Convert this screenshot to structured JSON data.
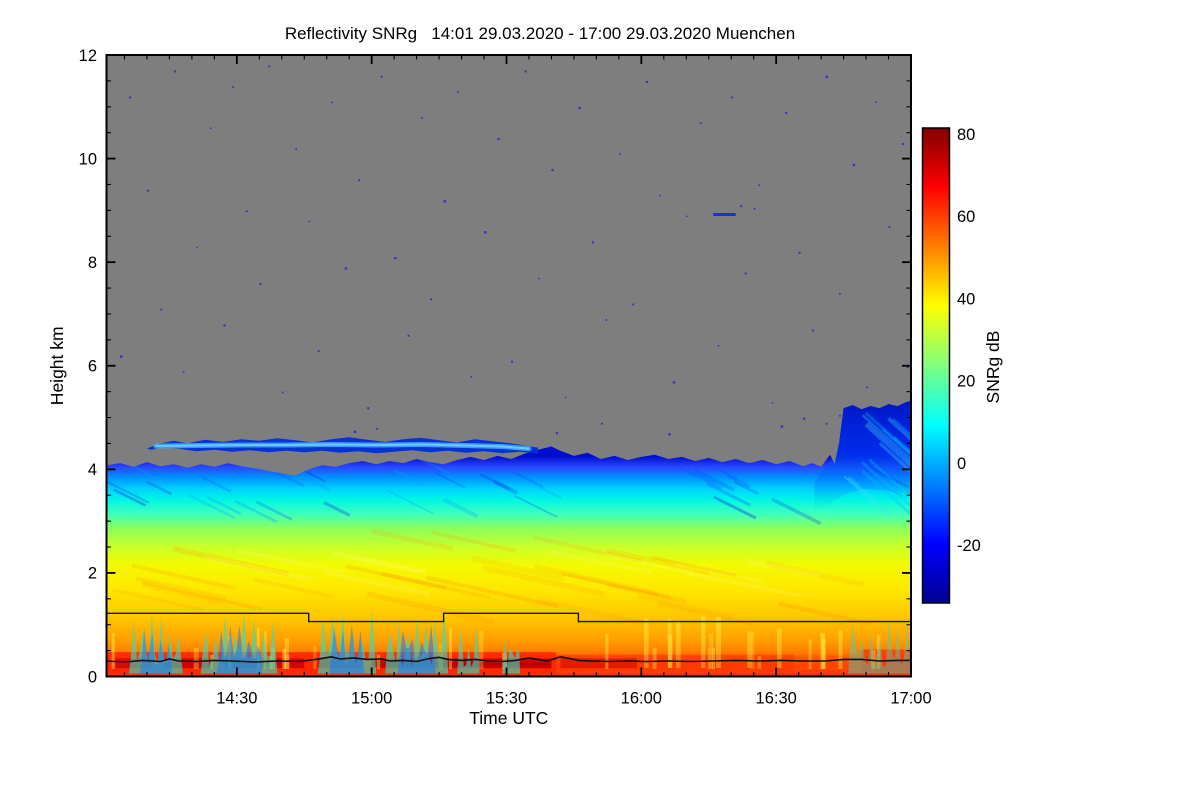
{
  "title": "Reflectivity SNRg   14:01 29.03.2020 - 17:00 29.03.2020 Muenchen",
  "axes": {
    "x_label": "Time UTC",
    "y_label": "Height km"
  },
  "colorbar": {
    "label": "SNRg dB"
  },
  "chart_data": {
    "type": "heatmap",
    "title": "Reflectivity SNRg   14:01 29.03.2020 - 17:00 29.03.2020 Muenchen",
    "site": "Muenchen",
    "time_start": "14:01 29.03.2020",
    "time_end": "17:00 29.03.2020",
    "x_axis": {
      "label": "Time UTC",
      "start_min": 0,
      "end_min": 179,
      "major_ticks": [
        {
          "t": 29,
          "label": "14:30"
        },
        {
          "t": 59,
          "label": "15:00"
        },
        {
          "t": 89,
          "label": "15:30"
        },
        {
          "t": 119,
          "label": "16:00"
        },
        {
          "t": 149,
          "label": "16:30"
        },
        {
          "t": 179,
          "label": "17:00"
        }
      ],
      "minor_step_min": 5
    },
    "y_axis": {
      "label": "Height km",
      "range_km": [
        0,
        12
      ],
      "major_ticks": [
        {
          "v": 0,
          "label": "0"
        },
        {
          "v": 2,
          "label": "2"
        },
        {
          "v": 4,
          "label": "4"
        },
        {
          "v": 6,
          "label": "6"
        },
        {
          "v": 8,
          "label": "8"
        },
        {
          "v": 10,
          "label": "10"
        },
        {
          "v": 12,
          "label": "12"
        }
      ],
      "minor_step_km": 0.5
    },
    "colorbar": {
      "label": "SNRg dB",
      "range_db": [
        -34,
        81.5
      ],
      "major_ticks": [
        {
          "v": -20,
          "label": "-20"
        },
        {
          "v": 0,
          "label": "0"
        },
        {
          "v": 20,
          "label": "20"
        },
        {
          "v": 40,
          "label": "40"
        },
        {
          "v": 60,
          "label": "60"
        },
        {
          "v": 80,
          "label": "80"
        }
      ],
      "minor_ticks": [
        -30,
        -10,
        10,
        30,
        50,
        70
      ],
      "colormap": "jet"
    },
    "no_data_color": "#7e7e7e",
    "snr_db_by_height_km_profile": [
      [
        0.1,
        62
      ],
      [
        0.3,
        60
      ],
      [
        0.7,
        50
      ],
      [
        1.2,
        47
      ],
      [
        2.0,
        42
      ],
      [
        2.6,
        35
      ],
      [
        3.0,
        27
      ],
      [
        3.3,
        20
      ],
      [
        3.6,
        12
      ],
      [
        3.8,
        4
      ],
      [
        4.0,
        -5
      ],
      [
        4.15,
        -20
      ]
    ],
    "cloud_top_km": [
      [
        0,
        4.08
      ],
      [
        3,
        4.12
      ],
      [
        6,
        4.05
      ],
      [
        9,
        4.14
      ],
      [
        12,
        4.06
      ],
      [
        15,
        4.1
      ],
      [
        18,
        4.03
      ],
      [
        21,
        4.1
      ],
      [
        24,
        4.05
      ],
      [
        27,
        4.12
      ],
      [
        30,
        4.06
      ],
      [
        33,
        4.02
      ],
      [
        36,
        3.97
      ],
      [
        39,
        3.92
      ],
      [
        42,
        3.88
      ],
      [
        44,
        3.96
      ],
      [
        46,
        4.03
      ],
      [
        48,
        4.08
      ],
      [
        51,
        4.05
      ],
      [
        54,
        4.12
      ],
      [
        57,
        4.16
      ],
      [
        60,
        4.1
      ],
      [
        63,
        4.16
      ],
      [
        66,
        4.12
      ],
      [
        69,
        4.2
      ],
      [
        72,
        4.14
      ],
      [
        75,
        4.1
      ],
      [
        78,
        4.18
      ],
      [
        81,
        4.24
      ],
      [
        84,
        4.18
      ],
      [
        87,
        4.26
      ],
      [
        90,
        4.2
      ],
      [
        93,
        4.3
      ],
      [
        96,
        4.38
      ],
      [
        99,
        4.44
      ],
      [
        101,
        4.36
      ],
      [
        104,
        4.26
      ],
      [
        107,
        4.32
      ],
      [
        110,
        4.2
      ],
      [
        113,
        4.26
      ],
      [
        116,
        4.18
      ],
      [
        119,
        4.24
      ],
      [
        122,
        4.28
      ],
      [
        125,
        4.2
      ],
      [
        128,
        4.24
      ],
      [
        131,
        4.16
      ],
      [
        134,
        4.22
      ],
      [
        137,
        4.14
      ],
      [
        140,
        4.2
      ],
      [
        143,
        4.12
      ],
      [
        146,
        4.18
      ],
      [
        149,
        4.1
      ],
      [
        152,
        4.16
      ],
      [
        155,
        4.06
      ],
      [
        157,
        4.12
      ],
      [
        159,
        4.05
      ],
      [
        161,
        4.28
      ],
      [
        162,
        4.1
      ],
      [
        163,
        4.5
      ],
      [
        164,
        5.18
      ],
      [
        166,
        5.24
      ],
      [
        168,
        5.16
      ],
      [
        170,
        5.22
      ],
      [
        172,
        5.18
      ],
      [
        174,
        5.26
      ],
      [
        176,
        5.22
      ],
      [
        178,
        5.3
      ],
      [
        179,
        5.32
      ]
    ],
    "detached_layer_km": [
      [
        9,
        4.4
      ],
      [
        12,
        4.5
      ],
      [
        15,
        4.55
      ],
      [
        18,
        4.5
      ],
      [
        22,
        4.57
      ],
      [
        26,
        4.53
      ],
      [
        30,
        4.58
      ],
      [
        34,
        4.55
      ],
      [
        38,
        4.6
      ],
      [
        42,
        4.56
      ],
      [
        46,
        4.52
      ],
      [
        50,
        4.58
      ],
      [
        54,
        4.62
      ],
      [
        58,
        4.57
      ],
      [
        62,
        4.53
      ],
      [
        66,
        4.58
      ],
      [
        70,
        4.61
      ],
      [
        74,
        4.56
      ],
      [
        78,
        4.52
      ],
      [
        82,
        4.58
      ],
      [
        86,
        4.54
      ],
      [
        90,
        4.5
      ],
      [
        93,
        4.46
      ],
      [
        96,
        4.42
      ],
      [
        96,
        4.3
      ],
      [
        92,
        4.34
      ],
      [
        88,
        4.31
      ],
      [
        84,
        4.35
      ],
      [
        80,
        4.32
      ],
      [
        76,
        4.36
      ],
      [
        72,
        4.33
      ],
      [
        68,
        4.37
      ],
      [
        64,
        4.34
      ],
      [
        60,
        4.31
      ],
      [
        56,
        4.35
      ],
      [
        52,
        4.32
      ],
      [
        48,
        4.36
      ],
      [
        44,
        4.33
      ],
      [
        40,
        4.36
      ],
      [
        36,
        4.33
      ],
      [
        32,
        4.37
      ],
      [
        28,
        4.34
      ],
      [
        24,
        4.38
      ],
      [
        20,
        4.35
      ],
      [
        16,
        4.4
      ],
      [
        12,
        4.42
      ],
      [
        10,
        4.38
      ]
    ],
    "detached_layer_core_km": [
      [
        11,
        4.45
      ],
      [
        20,
        4.46
      ],
      [
        30,
        4.47
      ],
      [
        40,
        4.47
      ],
      [
        50,
        4.48
      ],
      [
        60,
        4.47
      ],
      [
        70,
        4.48
      ],
      [
        80,
        4.46
      ],
      [
        88,
        4.44
      ],
      [
        94,
        4.4
      ]
    ],
    "boundary_step_line_km": [
      [
        0,
        1.22
      ],
      [
        45,
        1.22
      ],
      [
        45,
        1.06
      ],
      [
        75,
        1.06
      ],
      [
        75,
        1.22
      ],
      [
        105,
        1.22
      ],
      [
        105,
        1.06
      ],
      [
        179,
        1.06
      ]
    ],
    "surface_line_km": [
      [
        0,
        0.3
      ],
      [
        4,
        0.28
      ],
      [
        8,
        0.31
      ],
      [
        12,
        0.29
      ],
      [
        14,
        0.34
      ],
      [
        16,
        0.3
      ],
      [
        20,
        0.29
      ],
      [
        24,
        0.31
      ],
      [
        28,
        0.3
      ],
      [
        33,
        0.28
      ],
      [
        38,
        0.3
      ],
      [
        43,
        0.29
      ],
      [
        48,
        0.35
      ],
      [
        50,
        0.38
      ],
      [
        52,
        0.34
      ],
      [
        55,
        0.36
      ],
      [
        58,
        0.33
      ],
      [
        61,
        0.34
      ],
      [
        63,
        0.3
      ],
      [
        66,
        0.31
      ],
      [
        69,
        0.29
      ],
      [
        72,
        0.35
      ],
      [
        74,
        0.37
      ],
      [
        76,
        0.33
      ],
      [
        79,
        0.31
      ],
      [
        82,
        0.33
      ],
      [
        85,
        0.3
      ],
      [
        88,
        0.29
      ],
      [
        91,
        0.31
      ],
      [
        94,
        0.36
      ],
      [
        96,
        0.33
      ],
      [
        98,
        0.3
      ],
      [
        101,
        0.38
      ],
      [
        103,
        0.35
      ],
      [
        105,
        0.31
      ],
      [
        108,
        0.3
      ],
      [
        112,
        0.29
      ],
      [
        116,
        0.3
      ],
      [
        120,
        0.29
      ],
      [
        125,
        0.3
      ],
      [
        130,
        0.29
      ],
      [
        135,
        0.3
      ],
      [
        140,
        0.31
      ],
      [
        145,
        0.3
      ],
      [
        150,
        0.31
      ],
      [
        155,
        0.3
      ],
      [
        160,
        0.3
      ],
      [
        164,
        0.33
      ],
      [
        168,
        0.33
      ],
      [
        172,
        0.3
      ],
      [
        176,
        0.31
      ],
      [
        179,
        0.31
      ]
    ],
    "bright_band_segments": [
      {
        "t0": 0,
        "t1": 100,
        "k0": 0.05,
        "k1": 0.47,
        "color": "#ff2600",
        "opacity": 0.9
      },
      {
        "t0": 100,
        "t1": 153,
        "k0": 0.1,
        "k1": 0.42,
        "color": "#ff3c00",
        "opacity": 0.75
      },
      {
        "t0": 153,
        "t1": 168,
        "k0": 0.12,
        "k1": 0.4,
        "color": "#ff5a00",
        "opacity": 0.5
      },
      {
        "t0": 168,
        "t1": 179,
        "k0": 0.08,
        "k1": 0.52,
        "color": "#ff3000",
        "opacity": 0.75
      }
    ],
    "bright_band_cores": [
      [
        2,
        10,
        0.7
      ],
      [
        13,
        24,
        0.85
      ],
      [
        26,
        44,
        0.8
      ],
      [
        47,
        57,
        0.8
      ],
      [
        59,
        99,
        0.9
      ],
      [
        101,
        118,
        0.5
      ]
    ],
    "plumes": [
      {
        "t0": 5,
        "t1": 17,
        "top_km": 1.22,
        "core": true
      },
      {
        "t0": 21,
        "t1": 38,
        "top_km": 1.32,
        "core": true
      },
      {
        "t0": 47,
        "t1": 60,
        "top_km": 1.28,
        "core": true
      },
      {
        "t0": 62,
        "t1": 76,
        "top_km": 1.3,
        "core": true
      },
      {
        "t0": 78,
        "t1": 83,
        "top_km": 0.95,
        "core": false
      },
      {
        "t0": 88,
        "t1": 92,
        "top_km": 0.8,
        "core": false
      },
      {
        "t0": 165,
        "t1": 179,
        "top_km": 1.25,
        "core": false,
        "soft": true
      }
    ],
    "high_cloud_dash": {
      "t0": 135,
      "t1": 140,
      "km": 8.92
    },
    "noise_speckles_km": [
      [
        3,
        6.2
      ],
      [
        5,
        11.2
      ],
      [
        9,
        9.4
      ],
      [
        12,
        7.1
      ],
      [
        15,
        11.7
      ],
      [
        17,
        5.9
      ],
      [
        20,
        8.3
      ],
      [
        23,
        10.6
      ],
      [
        26,
        6.8
      ],
      [
        28,
        11.4
      ],
      [
        31,
        9.0
      ],
      [
        34,
        7.6
      ],
      [
        36,
        11.8
      ],
      [
        39,
        5.5
      ],
      [
        42,
        10.2
      ],
      [
        45,
        8.8
      ],
      [
        47,
        6.3
      ],
      [
        50,
        11.1
      ],
      [
        53,
        7.9
      ],
      [
        56,
        9.6
      ],
      [
        58,
        5.2
      ],
      [
        61,
        11.6
      ],
      [
        64,
        8.1
      ],
      [
        67,
        6.6
      ],
      [
        70,
        10.8
      ],
      [
        72,
        7.3
      ],
      [
        75,
        9.2
      ],
      [
        78,
        11.3
      ],
      [
        81,
        5.8
      ],
      [
        84,
        8.6
      ],
      [
        87,
        10.4
      ],
      [
        90,
        6.1
      ],
      [
        93,
        11.7
      ],
      [
        96,
        7.7
      ],
      [
        99,
        9.8
      ],
      [
        102,
        5.4
      ],
      [
        105,
        11.0
      ],
      [
        108,
        8.4
      ],
      [
        111,
        6.9
      ],
      [
        114,
        10.1
      ],
      [
        117,
        7.2
      ],
      [
        120,
        11.5
      ],
      [
        123,
        9.3
      ],
      [
        126,
        5.7
      ],
      [
        129,
        8.9
      ],
      [
        132,
        10.7
      ],
      [
        136,
        6.4
      ],
      [
        139,
        11.2
      ],
      [
        141,
        9.1
      ],
      [
        144,
        9.05
      ],
      [
        142,
        7.8
      ],
      [
        145,
        9.5
      ],
      [
        148,
        5.3
      ],
      [
        151,
        10.9
      ],
      [
        154,
        8.2
      ],
      [
        157,
        6.7
      ],
      [
        160,
        11.6
      ],
      [
        163,
        7.4
      ],
      [
        166,
        9.9
      ],
      [
        169,
        5.6
      ],
      [
        171,
        11.1
      ],
      [
        174,
        8.7
      ],
      [
        177,
        10.3
      ],
      [
        178,
        6.0
      ],
      [
        55,
        4.75
      ],
      [
        60,
        4.8
      ],
      [
        100,
        4.72
      ],
      [
        110,
        4.9
      ],
      [
        125,
        4.7
      ],
      [
        150,
        4.85
      ],
      [
        155,
        5.0
      ],
      [
        160,
        4.9
      ],
      [
        163,
        5.05
      ]
    ]
  }
}
